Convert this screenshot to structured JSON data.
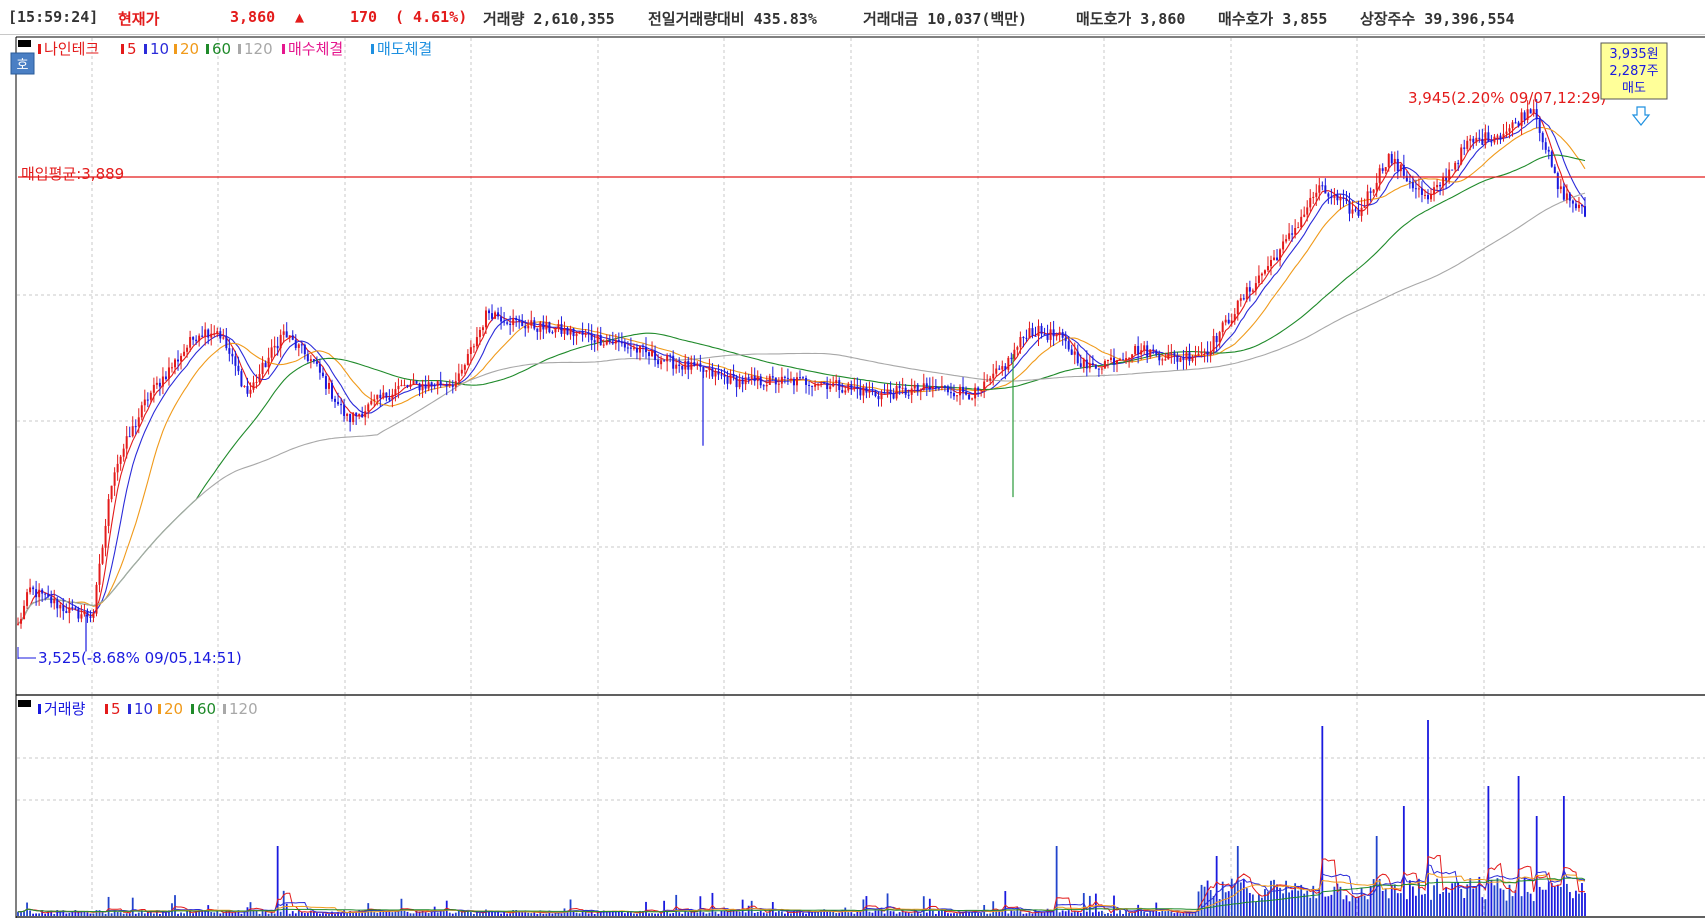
{
  "header": {
    "time": "[15:59:24]",
    "price_label": "현재가",
    "price": "3,860",
    "arrow": "▲",
    "change": "170",
    "change_pct": "( 4.61%)",
    "volume": "거래량 2,610,355",
    "vol_ratio": "전일거래량대비 435.83%",
    "trade_value": "거래대금 10,037(백만)",
    "ask": "매도호가 3,860",
    "bid": "매수호가 3,855",
    "shares": "상장주수 39,396,554"
  },
  "price_pane": {
    "legend": {
      "name": "나인테크",
      "ma5": "5",
      "ma10": "10",
      "ma20": "20",
      "ma60": "60",
      "ma120": "120",
      "buy_fill": "매수체결",
      "sell_fill": "매도체결"
    },
    "ho_button": "호",
    "avg_line_label": "매입평균:3,889",
    "high_label": "3,945(2.20% 09/07,12:29)",
    "low_label": "3,525(-8.68% 09/05,14:51)",
    "trade_tag": {
      "price": "3,935원",
      "qty": "2,287주",
      "side": "매도"
    }
  },
  "volume_pane": {
    "legend": {
      "name": "거래량",
      "ma5": "5",
      "ma10": "10",
      "ma20": "20",
      "ma60": "60",
      "ma120": "120"
    }
  },
  "colors": {
    "up": "#e31b1b",
    "down": "#1a1adf",
    "ma5": "#e31b1b",
    "ma10": "#2b2bd9",
    "ma20": "#f09a1a",
    "ma60": "#1f8a2a",
    "ma120": "#a8a8a8",
    "buy": "#e5168e",
    "sell": "#1e90e0",
    "avg_line": "#e31b1b"
  },
  "chart_data": {
    "type": "candlestick",
    "title": "나인테크",
    "y_axis": {
      "min": 3525,
      "max": 3945
    },
    "avg_price": 3889,
    "high": {
      "value": 3945,
      "pct": "2.20%",
      "time": "09/07,12:29"
    },
    "low": {
      "value": 3525,
      "pct": "-8.68%",
      "time": "09/05,14:51"
    },
    "price_keypoints": [
      [
        0,
        3540
      ],
      [
        12,
        3568
      ],
      [
        55,
        3550
      ],
      [
        75,
        3548
      ],
      [
        95,
        3660
      ],
      [
        130,
        3718
      ],
      [
        180,
        3768
      ],
      [
        200,
        3770
      ],
      [
        230,
        3720
      ],
      [
        265,
        3768
      ],
      [
        295,
        3745
      ],
      [
        330,
        3700
      ],
      [
        380,
        3725
      ],
      [
        440,
        3730
      ],
      [
        470,
        3785
      ],
      [
        500,
        3775
      ],
      [
        540,
        3770
      ],
      [
        600,
        3760
      ],
      [
        640,
        3748
      ],
      [
        720,
        3730
      ],
      [
        800,
        3730
      ],
      [
        860,
        3720
      ],
      [
        920,
        3725
      ],
      [
        960,
        3720
      ],
      [
        990,
        3745
      ],
      [
        1010,
        3770
      ],
      [
        1040,
        3765
      ],
      [
        1070,
        3740
      ],
      [
        1120,
        3755
      ],
      [
        1160,
        3748
      ],
      [
        1190,
        3755
      ],
      [
        1230,
        3800
      ],
      [
        1270,
        3840
      ],
      [
        1300,
        3880
      ],
      [
        1340,
        3860
      ],
      [
        1370,
        3905
      ],
      [
        1410,
        3870
      ],
      [
        1450,
        3915
      ],
      [
        1490,
        3925
      ],
      [
        1515,
        3945
      ],
      [
        1540,
        3880
      ],
      [
        1567,
        3860
      ]
    ],
    "volume_spikes": [
      [
        1303,
        0.95
      ],
      [
        1410,
        0.98
      ],
      [
        1470,
        0.65
      ],
      [
        1387,
        0.55
      ],
      [
        1500,
        0.7
      ],
      [
        1545,
        0.6
      ],
      [
        260,
        0.35
      ],
      [
        1040,
        0.35
      ],
      [
        1220,
        0.35
      ],
      [
        1200,
        0.3
      ],
      [
        1360,
        0.4
      ],
      [
        1520,
        0.5
      ]
    ]
  }
}
